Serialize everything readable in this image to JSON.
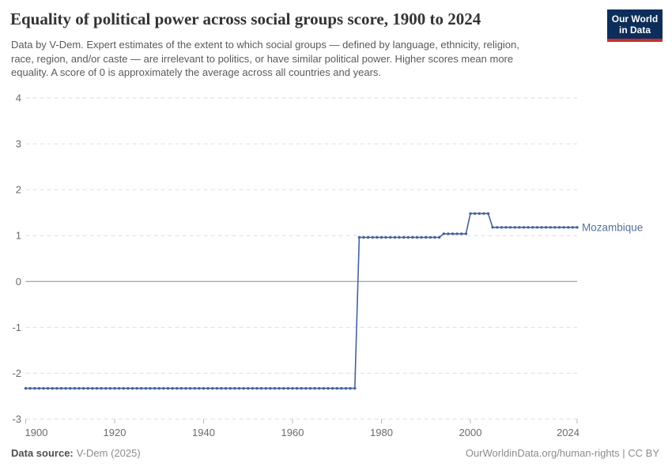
{
  "header": {
    "title": "Equality of political power across social groups score, 1900 to 2024",
    "subtitle_lines": [
      "Data by V-Dem. Expert estimates of the extent to which social groups — defined by language, ethnicity, religion,",
      "race, region, and/or caste — are irrelevant to politics, or have similar political power. Higher scores mean more",
      "equality. A score of 0 is approximately the average across all countries and years."
    ],
    "logo": {
      "line1": "Our World",
      "line2": "in Data"
    }
  },
  "footer": {
    "source_label": "Data source:",
    "source_value": "V-Dem (2025)",
    "credit": "OurWorldinData.org/human-rights | CC BY"
  },
  "colors": {
    "series": "#44639c",
    "series_label": "#54729f",
    "grid": "#dedede",
    "zero_line": "#8c8c8c",
    "axis_text": "#6b6b6b",
    "tick": "#b5b5b5",
    "logo_bg": "#0d2e5a",
    "logo_red": "#c7302f"
  },
  "chart_data": {
    "type": "line",
    "title": "Equality of political power across social groups score, 1900 to 2024",
    "xlabel": "",
    "ylabel": "",
    "grid": true,
    "legend_position": "right-of-line",
    "x": {
      "min": 1900,
      "max": 2024,
      "ticks": [
        1900,
        1920,
        1940,
        1960,
        1980,
        2000,
        2024
      ]
    },
    "y": {
      "min": -3,
      "max": 4,
      "ticks": [
        4,
        3,
        2,
        1,
        0,
        -1,
        -2,
        -3
      ]
    },
    "series": [
      {
        "name": "Mozambique",
        "point_frequency_years": 1,
        "segments": [
          {
            "from": 1900,
            "to": 1974,
            "value": -2.33
          },
          {
            "from": 1975,
            "to": 1993,
            "value": 0.96
          },
          {
            "from": 1994,
            "to": 1999,
            "value": 1.04
          },
          {
            "from": 2000,
            "to": 2004,
            "value": 1.48
          },
          {
            "from": 2005,
            "to": 2024,
            "value": 1.18
          }
        ]
      }
    ]
  }
}
